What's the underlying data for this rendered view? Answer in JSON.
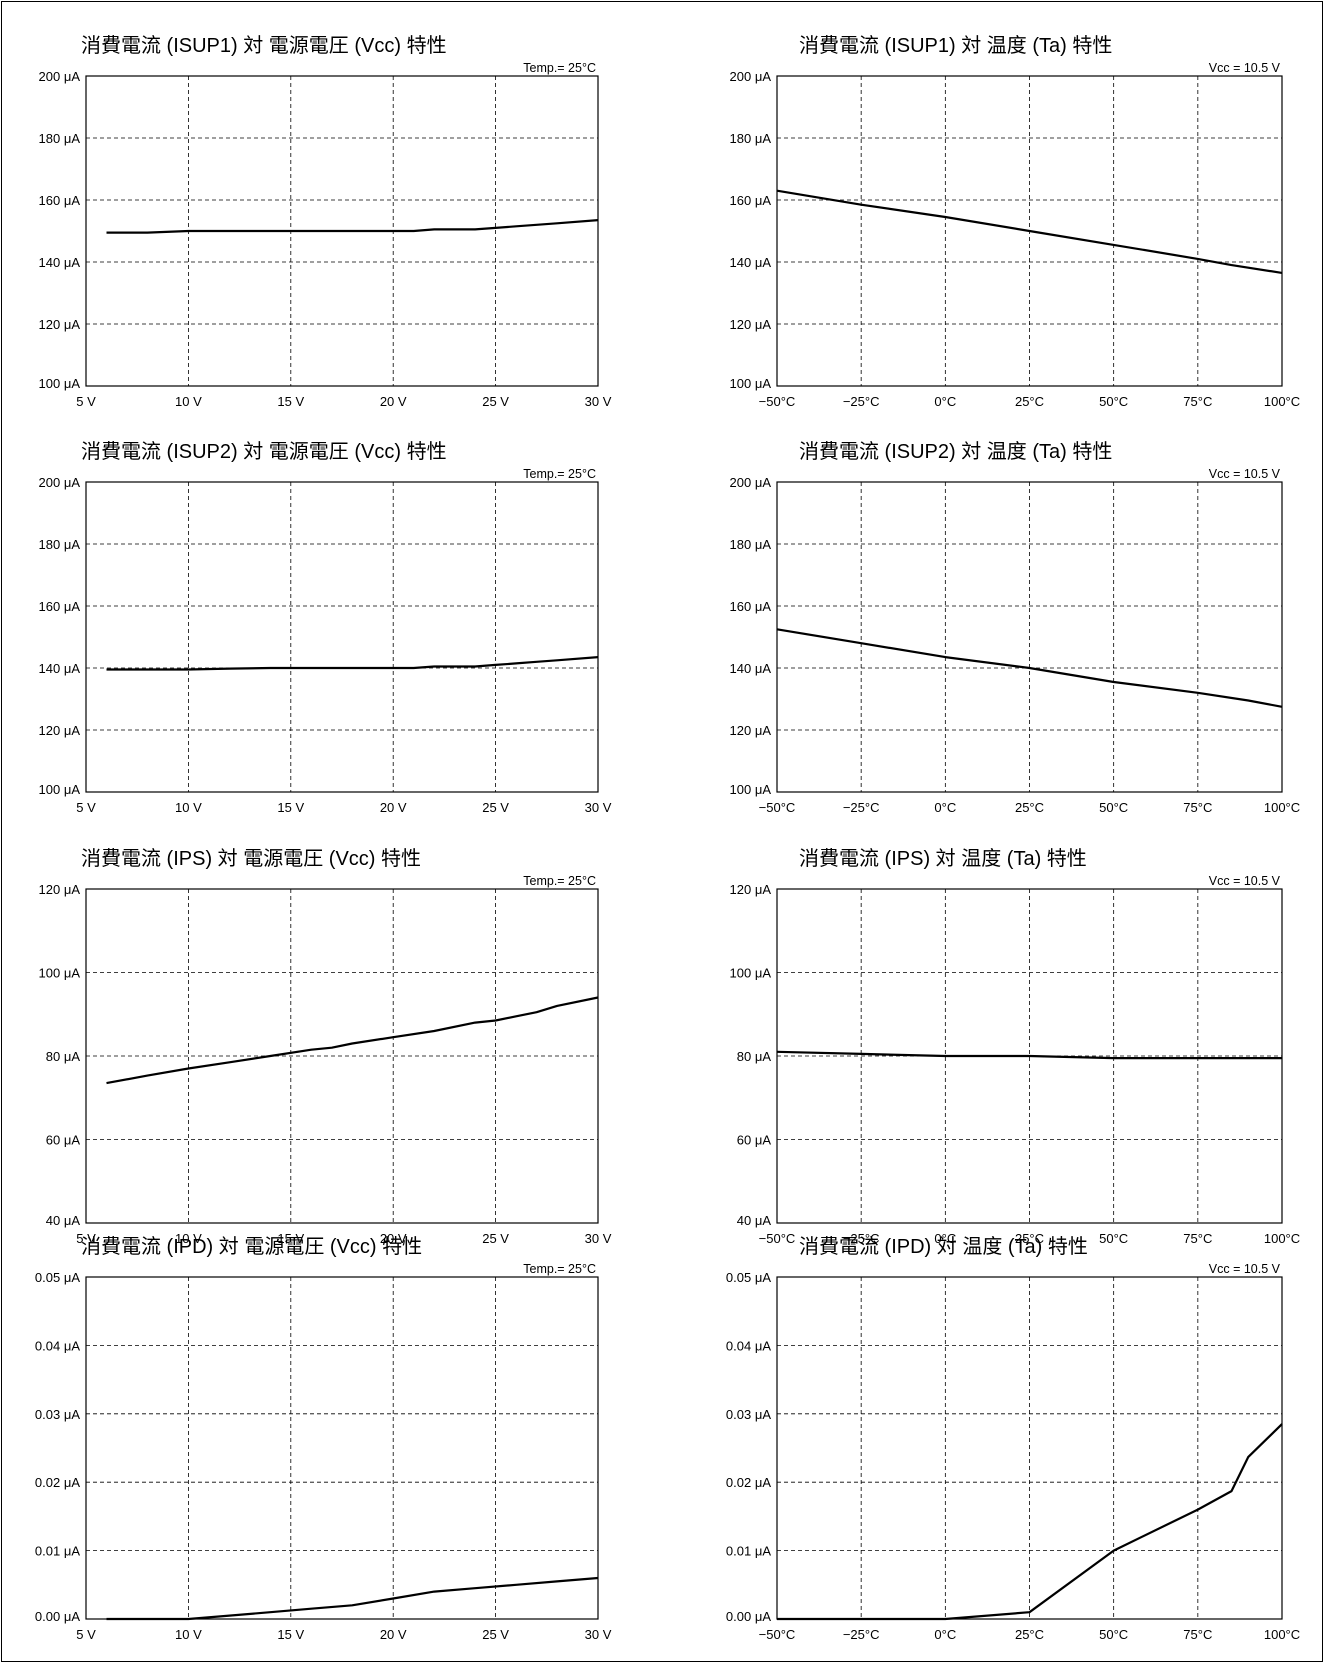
{
  "chart_data": [
    {
      "type": "line",
      "title": "消費電流 (ISUP1) 対 電源電圧 (Vcc) 特性",
      "condition": "Temp.= 25°C",
      "x_ticks": [
        5,
        10,
        15,
        20,
        25,
        30
      ],
      "x_tick_labels": [
        "5 V",
        "10 V",
        "15 V",
        "20 V",
        "25 V",
        "30 V"
      ],
      "y_ticks": [
        100,
        120,
        140,
        160,
        180,
        200
      ],
      "y_tick_labels": [
        "100 μA",
        "120 μA",
        "140 μA",
        "160 μA",
        "180 μA",
        "200 μA"
      ],
      "xlim": [
        5,
        30
      ],
      "ylim": [
        100,
        200
      ],
      "grid": true,
      "series": [
        {
          "x": [
            6,
            8,
            10,
            12,
            14,
            16,
            18,
            20,
            21,
            22,
            24,
            25,
            26,
            27,
            28,
            30
          ],
          "y": [
            149.5,
            149.5,
            150,
            150,
            150,
            150,
            150,
            150,
            150,
            150.5,
            150.5,
            151,
            151.5,
            152,
            152.5,
            153.5
          ]
        }
      ]
    },
    {
      "type": "line",
      "title": "消費電流 (ISUP1) 対 温度 (Ta) 特性",
      "condition": "Vcc = 10.5 V",
      "x_ticks": [
        -50,
        -25,
        0,
        25,
        50,
        75,
        100
      ],
      "x_tick_labels": [
        "−50°C",
        "−25°C",
        "0°C",
        "25°C",
        "50°C",
        "75°C",
        "100°C"
      ],
      "y_ticks": [
        100,
        120,
        140,
        160,
        180,
        200
      ],
      "y_tick_labels": [
        "100 μA",
        "120 μA",
        "140 μA",
        "160 μA",
        "180 μA",
        "200 μA"
      ],
      "xlim": [
        -50,
        100
      ],
      "ylim": [
        100,
        200
      ],
      "grid": true,
      "series": [
        {
          "x": [
            -50,
            -25,
            0,
            25,
            50,
            75,
            85,
            100
          ],
          "y": [
            163,
            158.5,
            154.5,
            150,
            145.5,
            141,
            139,
            136.5
          ]
        }
      ]
    },
    {
      "type": "line",
      "title": "消費電流 (ISUP2) 対 電源電圧 (Vcc) 特性",
      "condition": "Temp.= 25°C",
      "x_ticks": [
        5,
        10,
        15,
        20,
        25,
        30
      ],
      "x_tick_labels": [
        "5 V",
        "10 V",
        "15 V",
        "20 V",
        "25 V",
        "30 V"
      ],
      "y_ticks": [
        100,
        120,
        140,
        160,
        180,
        200
      ],
      "y_tick_labels": [
        "100 μA",
        "120 μA",
        "140 μA",
        "160 μA",
        "180 μA",
        "200 μA"
      ],
      "xlim": [
        5,
        30
      ],
      "ylim": [
        100,
        200
      ],
      "grid": true,
      "series": [
        {
          "x": [
            6,
            8,
            10,
            12,
            14,
            16,
            18,
            20,
            21,
            22,
            24,
            25,
            26,
            27,
            28,
            30
          ],
          "y": [
            139.5,
            139.5,
            139.5,
            139.8,
            140,
            140,
            140,
            140,
            140,
            140.5,
            140.5,
            141,
            141.5,
            142,
            142.5,
            143.5
          ]
        }
      ]
    },
    {
      "type": "line",
      "title": "消費電流 (ISUP2) 対 温度 (Ta) 特性",
      "condition": "Vcc = 10.5 V",
      "x_ticks": [
        -50,
        -25,
        0,
        25,
        50,
        75,
        100
      ],
      "x_tick_labels": [
        "−50°C",
        "−25°C",
        "0°C",
        "25°C",
        "50°C",
        "75°C",
        "100°C"
      ],
      "y_ticks": [
        100,
        120,
        140,
        160,
        180,
        200
      ],
      "y_tick_labels": [
        "100 μA",
        "120 μA",
        "140 μA",
        "160 μA",
        "180 μA",
        "200 μA"
      ],
      "xlim": [
        -50,
        100
      ],
      "ylim": [
        100,
        200
      ],
      "grid": true,
      "series": [
        {
          "x": [
            -50,
            -25,
            0,
            25,
            50,
            75,
            90,
            100
          ],
          "y": [
            152.5,
            148,
            143.5,
            140,
            135.5,
            132,
            129.5,
            127.5
          ]
        }
      ]
    },
    {
      "type": "line",
      "title": "消費電流 (IPS) 対 電源電圧 (Vcc) 特性",
      "condition": "Temp.= 25°C",
      "x_ticks": [
        5,
        10,
        15,
        20,
        25,
        30
      ],
      "x_tick_labels": [
        "5 V",
        "10 V",
        "15 V",
        "20 V",
        "25 V",
        "30 V"
      ],
      "y_ticks": [
        40,
        60,
        80,
        100,
        120
      ],
      "y_tick_labels": [
        "40 μA",
        "60 μA",
        "80 μA",
        "100 μA",
        "120 μA"
      ],
      "xlim": [
        5,
        30
      ],
      "ylim": [
        40,
        120
      ],
      "grid": true,
      "series": [
        {
          "x": [
            6,
            8,
            10,
            12,
            14,
            16,
            17,
            18,
            20,
            22,
            24,
            25,
            26,
            27,
            28,
            30
          ],
          "y": [
            73.5,
            75.3,
            77,
            78.5,
            80,
            81.5,
            82,
            83,
            84.5,
            86,
            88,
            88.5,
            89.5,
            90.5,
            92,
            94
          ]
        }
      ]
    },
    {
      "type": "line",
      "title": "消費電流 (IPS) 対 温度 (Ta) 特性",
      "condition": "Vcc = 10.5 V",
      "x_ticks": [
        -50,
        -25,
        0,
        25,
        50,
        75,
        100
      ],
      "x_tick_labels": [
        "−50°C",
        "−25°C",
        "0°C",
        "25°C",
        "50°C",
        "75°C",
        "100°C"
      ],
      "y_ticks": [
        40,
        60,
        80,
        100,
        120
      ],
      "y_tick_labels": [
        "40 μA",
        "60 μA",
        "80 μA",
        "100 μA",
        "120 μA"
      ],
      "xlim": [
        -50,
        100
      ],
      "ylim": [
        40,
        120
      ],
      "grid": true,
      "series": [
        {
          "x": [
            -50,
            -25,
            0,
            25,
            50,
            75,
            100
          ],
          "y": [
            81,
            80.5,
            80,
            80,
            79.5,
            79.5,
            79.5
          ]
        }
      ]
    },
    {
      "type": "line",
      "title": "消費電流 (IPD) 対 電源電圧 (Vcc) 特性",
      "condition": "Temp.= 25°C",
      "x_ticks": [
        5,
        10,
        15,
        20,
        25,
        30
      ],
      "x_tick_labels": [
        "5 V",
        "10 V",
        "15 V",
        "20 V",
        "25 V",
        "30 V"
      ],
      "y_ticks": [
        0,
        0.01,
        0.02,
        0.03,
        0.04,
        0.05
      ],
      "y_tick_labels": [
        "0.00 μA",
        "0.01 μA",
        "0.02 μA",
        "0.03 μA",
        "0.04 μA",
        "0.05 μA"
      ],
      "xlim": [
        5,
        30
      ],
      "ylim": [
        0,
        0.05
      ],
      "grid": true,
      "series": [
        {
          "x": [
            6,
            8,
            10,
            12,
            14,
            16,
            18,
            20,
            22,
            24,
            26,
            28,
            30
          ],
          "y": [
            0,
            0,
            0,
            0.0005,
            0.001,
            0.0015,
            0.002,
            0.003,
            0.004,
            0.0045,
            0.005,
            0.0055,
            0.006
          ]
        }
      ]
    },
    {
      "type": "line",
      "title": "消費電流 (IPD) 対 温度 (Ta) 特性",
      "condition": "Vcc = 10.5 V",
      "x_ticks": [
        -50,
        -25,
        0,
        25,
        50,
        75,
        100
      ],
      "x_tick_labels": [
        "−50°C",
        "−25°C",
        "0°C",
        "25°C",
        "50°C",
        "75°C",
        "100°C"
      ],
      "y_ticks": [
        0,
        0.01,
        0.02,
        0.03,
        0.04,
        0.05
      ],
      "y_tick_labels": [
        "0.00 μA",
        "0.01 μA",
        "0.02 μA",
        "0.03 μA",
        "0.04 μA",
        "0.05 μA"
      ],
      "xlim": [
        -50,
        100
      ],
      "ylim": [
        0,
        0.05
      ],
      "grid": true,
      "series": [
        {
          "x": [
            -50,
            -25,
            0,
            25,
            50,
            75,
            85,
            90,
            100
          ],
          "y": [
            0,
            0,
            0,
            0.001,
            0.01,
            0.016,
            0.0187,
            0.0237,
            0.0285
          ]
        }
      ]
    }
  ]
}
